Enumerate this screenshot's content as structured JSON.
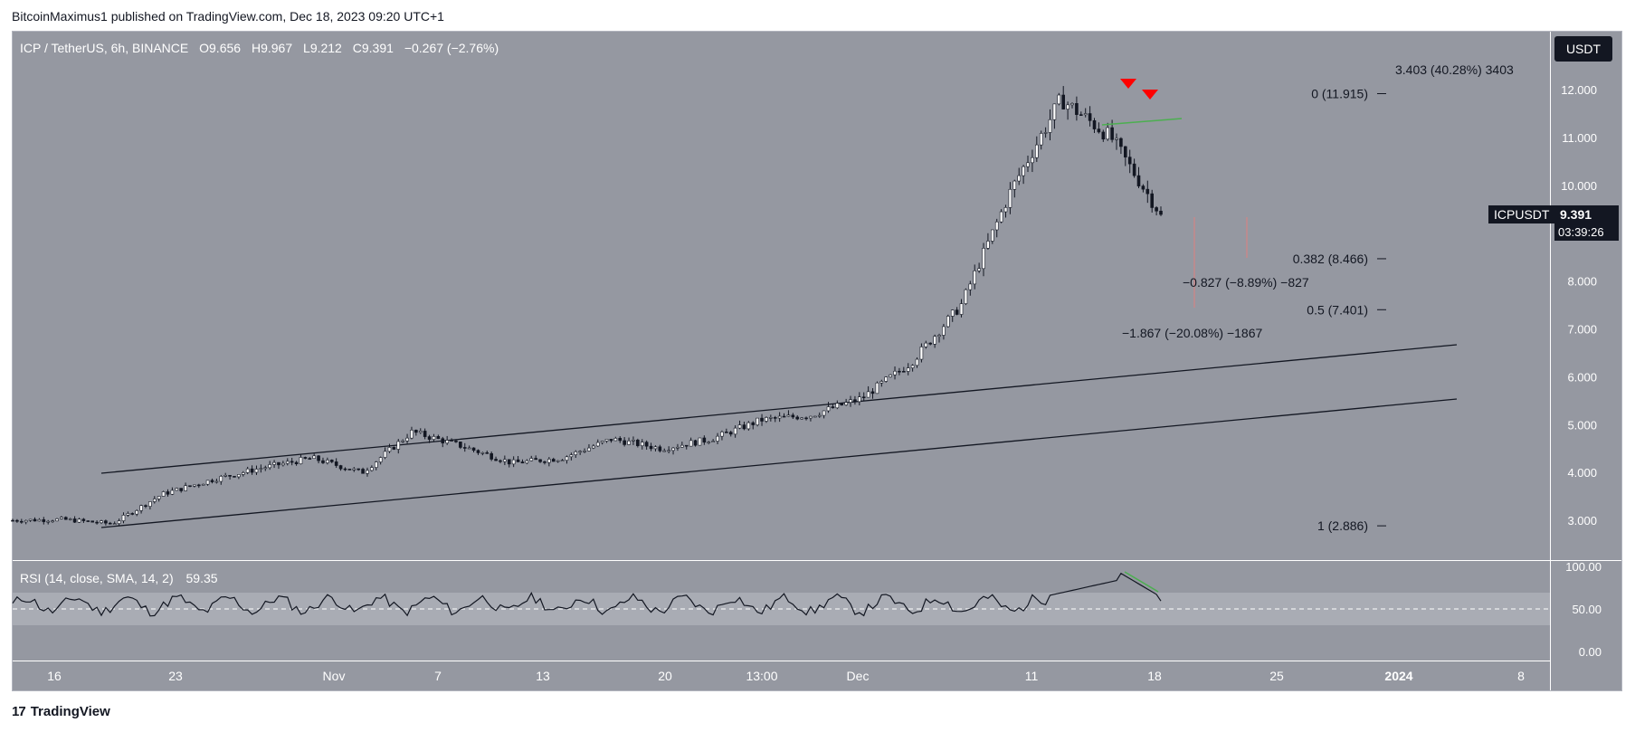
{
  "publisher_line": "BitcoinMaximus1 published on TradingView.com, Dec 18, 2023 09:20 UTC+1",
  "footer_brand": "TradingView",
  "footer_logo_glyph": "17",
  "currency_button": "USDT",
  "chart_data": {
    "type": "candlestick",
    "title": "ICP / TetherUS, 6h, BINANCE",
    "ohlc": {
      "o_label": "O",
      "o": "9.656",
      "h_label": "H",
      "h": "9.967",
      "l_label": "L",
      "l": "9.212",
      "c_label": "C",
      "c": "9.391",
      "change": "−0.267 (−2.76%)"
    },
    "price_axis": {
      "ticks": [
        "12.000",
        "11.000",
        "10.000",
        "9.000",
        "8.000",
        "7.000",
        "6.000",
        "5.000",
        "4.000",
        "3.000"
      ],
      "ylim": [
        2.3,
        12.55
      ]
    },
    "time_axis": {
      "ticks": [
        "16",
        "23",
        "Nov",
        "7",
        "13",
        "20",
        "13:00",
        "Dec",
        "11",
        "18",
        "25",
        "2024",
        "8"
      ]
    },
    "last_price": {
      "symbol": "ICPUSDT",
      "price": "9.391",
      "countdown": "03:39:26"
    },
    "price_series_approx": [
      {
        "date": "Oct 13",
        "close": 3.0
      },
      {
        "date": "Oct 18",
        "close": 3.02
      },
      {
        "date": "Oct 21",
        "close": 2.93
      },
      {
        "date": "Oct 25",
        "close": 3.55
      },
      {
        "date": "Oct 30",
        "close": 3.85
      },
      {
        "date": "Nov 2",
        "close": 4.1
      },
      {
        "date": "Nov 6",
        "close": 4.3
      },
      {
        "date": "Nov 9",
        "close": 4.0
      },
      {
        "date": "Nov 13",
        "close": 4.85
      },
      {
        "date": "Nov 16",
        "close": 4.55
      },
      {
        "date": "Nov 19",
        "close": 4.2
      },
      {
        "date": "Nov 22",
        "close": 4.3
      },
      {
        "date": "Nov 25",
        "close": 4.7
      },
      {
        "date": "Nov 29",
        "close": 4.5
      },
      {
        "date": "Dec 3",
        "close": 4.7
      },
      {
        "date": "Dec 6",
        "close": 5.1
      },
      {
        "date": "Dec 9",
        "close": 5.2
      },
      {
        "date": "Dec 11",
        "close": 5.55
      },
      {
        "date": "Dec 13",
        "close": 6.3
      },
      {
        "date": "Dec 14",
        "close": 7.5
      },
      {
        "date": "Dec 15",
        "close": 9.9
      },
      {
        "date": "Dec 16",
        "close": 11.8
      },
      {
        "date": "Dec 17",
        "close": 11.0
      },
      {
        "date": "Dec 18",
        "close": 9.391
      }
    ],
    "fib_levels": [
      {
        "label": "0 (11.915)",
        "value": 11.915
      },
      {
        "label": "0.382 (8.466)",
        "value": 8.466
      },
      {
        "label": "0.5 (7.401)",
        "value": 7.401
      },
      {
        "label": "1 (2.886)",
        "value": 2.886
      }
    ],
    "measurements": [
      {
        "label": "3.403 (40.28%) 3403"
      },
      {
        "label": "−0.827 (−8.89%) −827"
      },
      {
        "label": "−1.867 (−20.08%) −1867"
      }
    ],
    "rsi": {
      "title": "RSI (14, close, SMA, 14, 2)",
      "value": "59.35",
      "ticks": [
        "100.00",
        "50.00",
        "0.00"
      ],
      "ylim": [
        0,
        100
      ],
      "band": [
        30,
        70
      ]
    },
    "colors": {
      "plot_bg": "#9598a1",
      "candle": "#131722",
      "signal_marker": "#ff0000",
      "resistance": "#4caf50",
      "rsi_band": "#a9acb4"
    }
  }
}
